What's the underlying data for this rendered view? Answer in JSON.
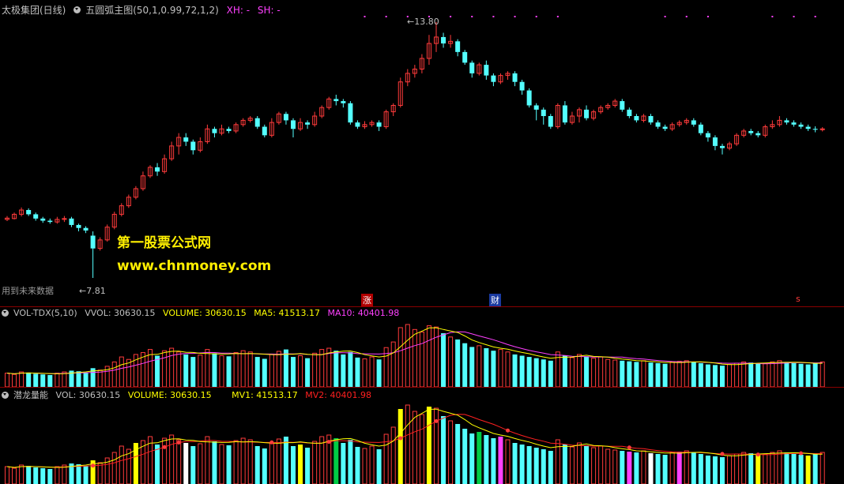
{
  "main_header": {
    "title": "太极集团(日线)",
    "indicator": "五圆弧主图(50,1,0.99,72,1,2)",
    "xh": "XH: -",
    "sh": "SH: -"
  },
  "price_marks": {
    "high": "13.80",
    "low": "7.81"
  },
  "watermark": {
    "line1": "第一股票公式网",
    "line2": "www.chnmoney.com"
  },
  "future_data_label": "用到未来数据",
  "event_markers": {
    "zhang": "涨",
    "cai": "财",
    "s": "s"
  },
  "vol_header": {
    "name": "VOL-TDX(5,10)",
    "vvol": "VVOL: 30630.15",
    "volume": "VOLUME: 30630.15",
    "ma5": "MA5: 41513.17",
    "ma10": "MA10: 40401.98"
  },
  "ql_header": {
    "name": "潜龙量能",
    "vol": "VOL: 30630.15",
    "volume": "VOLUME: 30630.15",
    "mv1": "MV1: 41513.17",
    "mv2": "MV2: 40401.98"
  },
  "colors": {
    "up": "#ff3b3b",
    "down": "#54ffff",
    "ma5": "#ffff00",
    "ma10": "#ff40ff",
    "mv2": "#ff2020",
    "header_white": "#c0c0c0",
    "vvol_yellow": "#ffff00",
    "magenta": "#ff40ff",
    "border": "#8a0000"
  },
  "chart_data": {
    "type": "candlestick",
    "price_range": [
      7.81,
      13.8
    ],
    "candles": [
      [
        9.18,
        9.21,
        9.14,
        9.26
      ],
      [
        9.2,
        9.3,
        9.18,
        9.34
      ],
      [
        9.3,
        9.4,
        9.25,
        9.46
      ],
      [
        9.4,
        9.3,
        9.26,
        9.44
      ],
      [
        9.3,
        9.2,
        9.15,
        9.34
      ],
      [
        9.2,
        9.15,
        9.1,
        9.24
      ],
      [
        9.15,
        9.12,
        9.08,
        9.2
      ],
      [
        9.12,
        9.18,
        9.08,
        9.24
      ],
      [
        9.18,
        9.2,
        9.12,
        9.26
      ],
      [
        9.2,
        9.05,
        9.0,
        9.24
      ],
      [
        9.05,
        8.98,
        8.9,
        9.08
      ],
      [
        8.98,
        8.92,
        8.86,
        9.02
      ],
      [
        8.8,
        8.5,
        7.81,
        8.9
      ],
      [
        8.5,
        8.7,
        8.45,
        8.76
      ],
      [
        8.7,
        9.0,
        8.66,
        9.06
      ],
      [
        9.0,
        9.3,
        8.95,
        9.36
      ],
      [
        9.3,
        9.5,
        9.25,
        9.56
      ],
      [
        9.5,
        9.7,
        9.45,
        9.76
      ],
      [
        9.7,
        9.9,
        9.65,
        9.96
      ],
      [
        9.9,
        10.2,
        9.85,
        10.3
      ],
      [
        10.2,
        10.4,
        10.15,
        10.45
      ],
      [
        10.4,
        10.3,
        10.2,
        10.5
      ],
      [
        10.3,
        10.6,
        10.25,
        10.7
      ],
      [
        10.6,
        10.9,
        10.55,
        11.0
      ],
      [
        10.9,
        11.1,
        10.7,
        11.2
      ],
      [
        11.1,
        11.0,
        10.9,
        11.2
      ],
      [
        11.0,
        10.8,
        10.7,
        11.05
      ],
      [
        10.8,
        11.0,
        10.75,
        11.1
      ],
      [
        11.0,
        11.3,
        10.95,
        11.4
      ],
      [
        11.3,
        11.2,
        11.1,
        11.35
      ],
      [
        11.2,
        11.3,
        11.15,
        11.4
      ],
      [
        11.3,
        11.25,
        11.2,
        11.35
      ],
      [
        11.25,
        11.4,
        11.2,
        11.45
      ],
      [
        11.4,
        11.5,
        11.35,
        11.55
      ],
      [
        11.5,
        11.55,
        11.45,
        11.6
      ],
      [
        11.55,
        11.35,
        11.3,
        11.6
      ],
      [
        11.35,
        11.15,
        11.1,
        11.4
      ],
      [
        11.15,
        11.45,
        11.1,
        11.55
      ],
      [
        11.45,
        11.65,
        11.4,
        11.7
      ],
      [
        11.65,
        11.5,
        11.4,
        11.7
      ],
      [
        11.5,
        11.3,
        11.1,
        11.55
      ],
      [
        11.3,
        11.45,
        11.25,
        11.55
      ],
      [
        11.45,
        11.4,
        11.3,
        11.5
      ],
      [
        11.4,
        11.6,
        11.35,
        11.7
      ],
      [
        11.6,
        11.8,
        11.55,
        11.85
      ],
      [
        11.8,
        12.0,
        11.75,
        12.05
      ],
      [
        12.0,
        11.95,
        11.85,
        12.1
      ],
      [
        11.95,
        11.9,
        11.8,
        12.0
      ],
      [
        11.9,
        11.45,
        11.4,
        11.95
      ],
      [
        11.45,
        11.35,
        11.3,
        11.5
      ],
      [
        11.35,
        11.4,
        11.3,
        11.48
      ],
      [
        11.4,
        11.45,
        11.35,
        11.5
      ],
      [
        11.45,
        11.35,
        11.25,
        11.5
      ],
      [
        11.35,
        11.7,
        11.3,
        11.75
      ],
      [
        11.7,
        11.85,
        11.6,
        11.9
      ],
      [
        11.85,
        12.4,
        11.8,
        12.5
      ],
      [
        12.4,
        12.6,
        12.3,
        12.7
      ],
      [
        12.6,
        12.7,
        12.5,
        12.8
      ],
      [
        12.7,
        12.95,
        12.6,
        13.05
      ],
      [
        12.95,
        13.3,
        12.8,
        13.5
      ],
      [
        13.3,
        13.45,
        13.1,
        13.8
      ],
      [
        13.45,
        13.3,
        13.2,
        13.55
      ],
      [
        13.3,
        13.35,
        13.2,
        13.5
      ],
      [
        13.35,
        13.1,
        13.0,
        13.4
      ],
      [
        13.1,
        12.85,
        12.8,
        13.15
      ],
      [
        12.85,
        12.6,
        12.5,
        12.9
      ],
      [
        12.6,
        12.8,
        12.55,
        12.85
      ],
      [
        12.8,
        12.55,
        12.45,
        12.9
      ],
      [
        12.55,
        12.4,
        12.3,
        12.6
      ],
      [
        12.4,
        12.55,
        12.35,
        12.6
      ],
      [
        12.55,
        12.6,
        12.45,
        12.65
      ],
      [
        12.6,
        12.4,
        12.3,
        12.65
      ],
      [
        12.4,
        12.2,
        12.1,
        12.45
      ],
      [
        12.2,
        11.85,
        11.8,
        12.25
      ],
      [
        11.85,
        11.75,
        11.5,
        11.9
      ],
      [
        11.75,
        11.6,
        11.4,
        11.8
      ],
      [
        11.6,
        11.35,
        11.3,
        11.65
      ],
      [
        11.35,
        11.85,
        11.3,
        11.9
      ],
      [
        11.85,
        11.45,
        11.4,
        11.95
      ],
      [
        11.45,
        11.6,
        11.4,
        11.7
      ],
      [
        11.6,
        11.75,
        11.45,
        11.8
      ],
      [
        11.75,
        11.55,
        11.5,
        11.85
      ],
      [
        11.55,
        11.7,
        11.5,
        11.75
      ],
      [
        11.7,
        11.8,
        11.65,
        11.85
      ],
      [
        11.8,
        11.85,
        11.75,
        11.9
      ],
      [
        11.85,
        11.95,
        11.8,
        12.0
      ],
      [
        11.95,
        11.75,
        11.7,
        12.0
      ],
      [
        11.75,
        11.6,
        11.55,
        11.8
      ],
      [
        11.6,
        11.5,
        11.45,
        11.65
      ],
      [
        11.5,
        11.6,
        11.45,
        11.65
      ],
      [
        11.6,
        11.45,
        11.4,
        11.65
      ],
      [
        11.45,
        11.35,
        11.3,
        11.5
      ],
      [
        11.35,
        11.3,
        11.25,
        11.4
      ],
      [
        11.3,
        11.4,
        11.25,
        11.45
      ],
      [
        11.4,
        11.45,
        11.35,
        11.5
      ],
      [
        11.45,
        11.5,
        11.4,
        11.55
      ],
      [
        11.5,
        11.4,
        11.35,
        11.55
      ],
      [
        11.4,
        11.2,
        11.15,
        11.45
      ],
      [
        11.2,
        11.1,
        11.0,
        11.25
      ],
      [
        11.1,
        10.9,
        10.8,
        11.15
      ],
      [
        10.9,
        10.85,
        10.7,
        10.95
      ],
      [
        10.85,
        10.95,
        10.8,
        11.0
      ],
      [
        10.95,
        11.15,
        10.9,
        11.2
      ],
      [
        11.15,
        11.25,
        11.1,
        11.3
      ],
      [
        11.25,
        11.2,
        11.15,
        11.3
      ],
      [
        11.2,
        11.15,
        11.1,
        11.25
      ],
      [
        11.15,
        11.35,
        11.1,
        11.4
      ],
      [
        11.35,
        11.4,
        11.3,
        11.5
      ],
      [
        11.4,
        11.5,
        11.35,
        11.6
      ],
      [
        11.5,
        11.45,
        11.4,
        11.55
      ],
      [
        11.45,
        11.4,
        11.35,
        11.5
      ],
      [
        11.4,
        11.35,
        11.3,
        11.45
      ],
      [
        11.35,
        11.3,
        11.25,
        11.4
      ],
      [
        11.3,
        11.28,
        11.22,
        11.36
      ],
      [
        11.28,
        11.3,
        11.24,
        11.34
      ]
    ],
    "volumes": [
      22,
      20,
      24,
      23,
      21,
      20,
      19,
      22,
      24,
      26,
      25,
      23,
      30,
      27,
      33,
      40,
      48,
      44,
      52,
      55,
      60,
      50,
      58,
      62,
      56,
      52,
      48,
      51,
      60,
      54,
      50,
      49,
      55,
      58,
      56,
      48,
      45,
      52,
      57,
      60,
      48,
      50,
      46,
      54,
      60,
      62,
      58,
      52,
      56,
      47,
      45,
      48,
      44,
      63,
      72,
      95,
      100,
      92,
      88,
      98,
      96,
      86,
      80,
      76,
      70,
      64,
      66,
      62,
      58,
      60,
      56,
      52,
      50,
      48,
      46,
      44,
      42,
      56,
      50,
      47,
      52,
      49,
      46,
      48,
      44,
      43,
      42,
      41,
      40,
      42,
      39,
      38,
      37,
      40,
      41,
      42,
      40,
      38,
      36,
      35,
      34,
      36,
      38,
      40,
      39,
      37,
      38,
      40,
      42,
      40,
      38,
      37,
      36,
      38,
      40
    ],
    "panel_max_volume": 100
  }
}
